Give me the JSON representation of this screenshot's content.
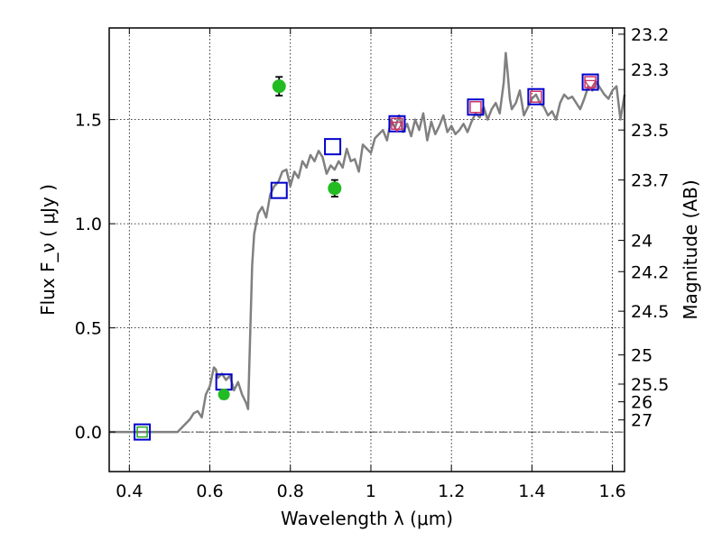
{
  "chart_data": {
    "type": "scatter",
    "title": "",
    "xlabel": "Wavelength  λ (μm)",
    "ylabel": "Flux  F_ν  ( μJy )",
    "ylabel_right": "Magnitude (AB)",
    "xlim": [
      0.35,
      1.63
    ],
    "ylim": [
      -0.19,
      1.94
    ],
    "x_ticks": [
      0.4,
      0.6,
      0.8,
      1.0,
      1.2,
      1.4,
      1.6
    ],
    "x_tick_labels": [
      "0.4",
      "0.6",
      "0.8",
      "1",
      "1.2",
      "1.4",
      "1.6"
    ],
    "y_ticks": [
      0.0,
      0.5,
      1.0,
      1.5
    ],
    "y_tick_labels": [
      "0.0",
      "0.5",
      "1.0",
      "1.5"
    ],
    "right_ticks": [
      {
        "label": "23.2",
        "flux": 1.91
      },
      {
        "label": "23.3",
        "flux": 1.74
      },
      {
        "label": "23.5",
        "flux": 1.45
      },
      {
        "label": "23.7",
        "flux": 1.21
      },
      {
        "label": "24",
        "flux": 0.92
      },
      {
        "label": "24.2",
        "flux": 0.77
      },
      {
        "label": "24.5",
        "flux": 0.58
      },
      {
        "label": "25",
        "flux": 0.37
      },
      {
        "label": "25.5",
        "flux": 0.23
      },
      {
        "label": "26",
        "flux": 0.145
      },
      {
        "label": "27",
        "flux": 0.058
      }
    ],
    "grid": true,
    "zero_line": true,
    "series": [
      {
        "kind": "line",
        "color": "#808080",
        "x": [
          0.35,
          0.52,
          0.55,
          0.56,
          0.57,
          0.58,
          0.59,
          0.6,
          0.61,
          0.615,
          0.62,
          0.63,
          0.64,
          0.65,
          0.66,
          0.67,
          0.68,
          0.69,
          0.695,
          0.7,
          0.705,
          0.71,
          0.72,
          0.73,
          0.74,
          0.75,
          0.76,
          0.77,
          0.78,
          0.79,
          0.8,
          0.81,
          0.82,
          0.83,
          0.84,
          0.85,
          0.86,
          0.87,
          0.88,
          0.89,
          0.9,
          0.91,
          0.92,
          0.93,
          0.94,
          0.95,
          0.96,
          0.97,
          0.98,
          0.99,
          1.0,
          1.01,
          1.02,
          1.03,
          1.04,
          1.05,
          1.06,
          1.07,
          1.08,
          1.09,
          1.1,
          1.11,
          1.12,
          1.13,
          1.14,
          1.15,
          1.16,
          1.17,
          1.18,
          1.19,
          1.2,
          1.21,
          1.22,
          1.23,
          1.24,
          1.25,
          1.26,
          1.27,
          1.28,
          1.29,
          1.3,
          1.31,
          1.32,
          1.33,
          1.335,
          1.34,
          1.345,
          1.35,
          1.36,
          1.37,
          1.38,
          1.39,
          1.4,
          1.41,
          1.42,
          1.43,
          1.44,
          1.45,
          1.46,
          1.47,
          1.48,
          1.49,
          1.5,
          1.51,
          1.52,
          1.53,
          1.54,
          1.55,
          1.56,
          1.57,
          1.58,
          1.59,
          1.6,
          1.61,
          1.62,
          1.63
        ],
        "y": [
          0.0,
          0.0,
          0.06,
          0.09,
          0.1,
          0.07,
          0.18,
          0.22,
          0.31,
          0.3,
          0.26,
          0.28,
          0.25,
          0.27,
          0.2,
          0.24,
          0.18,
          0.14,
          0.11,
          0.45,
          0.8,
          0.95,
          1.05,
          1.08,
          1.03,
          1.14,
          1.18,
          1.2,
          1.25,
          1.26,
          1.18,
          1.25,
          1.22,
          1.3,
          1.27,
          1.33,
          1.3,
          1.35,
          1.32,
          1.24,
          1.28,
          1.26,
          1.3,
          1.27,
          1.36,
          1.3,
          1.31,
          1.25,
          1.38,
          1.36,
          1.34,
          1.41,
          1.43,
          1.45,
          1.4,
          1.5,
          1.46,
          1.52,
          1.44,
          1.48,
          1.42,
          1.5,
          1.45,
          1.53,
          1.4,
          1.49,
          1.43,
          1.47,
          1.52,
          1.44,
          1.47,
          1.43,
          1.45,
          1.48,
          1.44,
          1.49,
          1.53,
          1.51,
          1.56,
          1.5,
          1.55,
          1.58,
          1.53,
          1.68,
          1.82,
          1.72,
          1.6,
          1.55,
          1.58,
          1.64,
          1.52,
          1.56,
          1.6,
          1.62,
          1.58,
          1.56,
          1.52,
          1.54,
          1.5,
          1.58,
          1.62,
          1.6,
          1.61,
          1.58,
          1.55,
          1.6,
          1.66,
          1.64,
          1.68,
          1.65,
          1.62,
          1.6,
          1.64,
          1.66,
          1.5,
          1.62
        ]
      },
      {
        "kind": "square",
        "color": "#0000cc",
        "x": [
          0.432,
          0.635,
          0.772,
          0.905,
          1.065,
          1.26,
          1.41,
          1.545
        ],
        "y": [
          0.0,
          0.24,
          1.16,
          1.37,
          1.48,
          1.56,
          1.61,
          1.68
        ]
      },
      {
        "kind": "square",
        "color": "#cc3366",
        "x": [
          1.065,
          1.26,
          1.41,
          1.545
        ],
        "y": [
          1.48,
          1.56,
          1.61,
          1.68
        ]
      },
      {
        "kind": "triangle",
        "color": "#cc3366",
        "x": [
          1.065,
          1.545
        ],
        "y": [
          1.47,
          1.67
        ]
      },
      {
        "kind": "square",
        "color": "#22aa22",
        "x": [
          0.432
        ],
        "y": [
          0.0
        ]
      },
      {
        "kind": "circle",
        "color": "#22bb22",
        "x": [
          0.635,
          0.772,
          0.91
        ],
        "y": [
          0.18,
          1.66,
          1.17
        ],
        "yerr": [
          0.02,
          0.045,
          0.04
        ]
      }
    ]
  }
}
